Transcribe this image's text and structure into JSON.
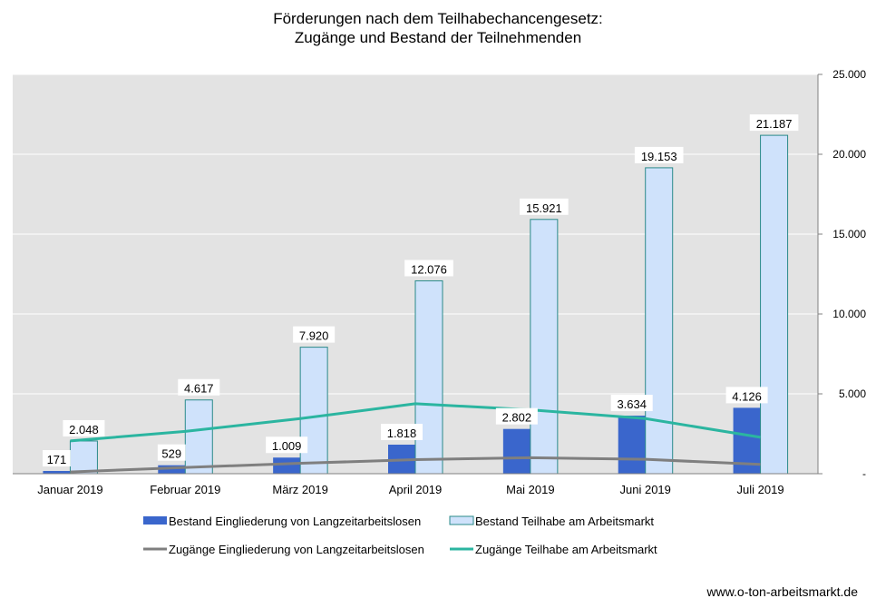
{
  "title_line1": "Förderungen nach dem Teilhabechancengesetz:",
  "title_line2": "Zugänge und Bestand der Teilnehmenden",
  "footer": "www.o-ton-arbeitsmarkt.de",
  "chart_data": {
    "type": "bar",
    "title": "Förderungen nach dem Teilhabechancengesetz: Zugänge und Bestand der Teilnehmenden",
    "categories": [
      "Januar 2019",
      "Februar 2019",
      "März 2019",
      "April 2019",
      "Mai 2019",
      "Juni 2019",
      "Juli 2019"
    ],
    "ylim": [
      0,
      25000
    ],
    "yticks": [
      0,
      5000,
      10000,
      15000,
      20000,
      25000
    ],
    "ytick_labels": [
      "-",
      "5.000",
      "10.000",
      "15.000",
      "20.000",
      "25.000"
    ],
    "y_axis_side": "right",
    "grid": true,
    "legend_position": "bottom",
    "series": [
      {
        "name": "Bestand Eingliederung von Langzeitarbeitslosen",
        "type": "bar",
        "color": "#3a66cc",
        "values": [
          171,
          529,
          1009,
          1818,
          2802,
          3634,
          4126
        ],
        "labels": [
          "171",
          "529",
          "1.009",
          "1.818",
          "2.802",
          "3.634",
          "4.126"
        ]
      },
      {
        "name": "Bestand Teilhabe am Arbeitsmarkt",
        "type": "bar",
        "color": "#cfe2fb",
        "stroke": "#2a8a8a",
        "values": [
          2048,
          4617,
          7920,
          12076,
          15921,
          19153,
          21187
        ],
        "labels": [
          "2.048",
          "4.617",
          "7.920",
          "12.076",
          "15.921",
          "19.153",
          "21.187"
        ]
      },
      {
        "name": "Zugänge Eingliederung von Langzeitarbeitslosen",
        "type": "line",
        "color": "#7f7f7f",
        "values": [
          110,
          390,
          650,
          880,
          1000,
          900,
          580
        ]
      },
      {
        "name": "Zugänge Teilhabe am Arbeitsmarkt",
        "type": "line",
        "color": "#2bb5a0",
        "values": [
          2050,
          2650,
          3450,
          4380,
          4000,
          3450,
          2280
        ]
      }
    ]
  }
}
